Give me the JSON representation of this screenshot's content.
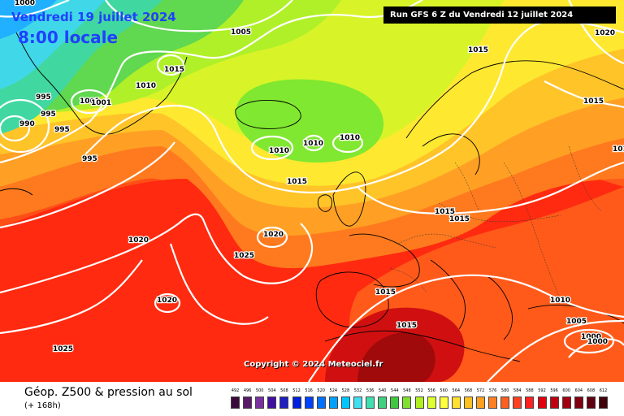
{
  "header": {
    "valid_date": "Vendredi 19 juillet 2024",
    "local_time": "8:00 locale",
    "run_info": "Run GFS 6 Z du Vendredi 12 juillet 2024"
  },
  "copyright": "Copyright © 2024 Meteociel.fr",
  "legend": {
    "title": "Géop. Z500 & pression au sol",
    "subtitle": "(+ 168h)",
    "ticks": [
      "492",
      "496",
      "500",
      "504",
      "508",
      "512",
      "516",
      "520",
      "524",
      "528",
      "532",
      "536",
      "540",
      "544",
      "548",
      "552",
      "556",
      "560",
      "564",
      "568",
      "572",
      "576",
      "580",
      "584",
      "588",
      "592",
      "596",
      "600",
      "604",
      "608",
      "612"
    ],
    "colors": [
      "#3a0a3a",
      "#5a1a6a",
      "#7a30a0",
      "#4010a0",
      "#2020c0",
      "#0020e0",
      "#0040ff",
      "#0070ff",
      "#00a0ff",
      "#00c8ff",
      "#40e0f0",
      "#40e0b0",
      "#40d080",
      "#40c840",
      "#80e030",
      "#b0f020",
      "#e0ff30",
      "#ffff40",
      "#ffe030",
      "#ffc020",
      "#ffa020",
      "#ff8020",
      "#ff6020",
      "#ff4020",
      "#ff2020",
      "#e00010",
      "#c00010",
      "#a00010",
      "#800010",
      "#600010",
      "#400008"
    ]
  },
  "isobars": {
    "labels": [
      {
        "text": "1000"
      },
      {
        "text": "1005"
      },
      {
        "text": "1015"
      },
      {
        "text": "1010"
      },
      {
        "text": "995"
      },
      {
        "text": "995"
      },
      {
        "text": "995"
      },
      {
        "text": "990"
      },
      {
        "text": "1001"
      },
      {
        "text": "1001"
      },
      {
        "text": "995"
      },
      {
        "text": "1010"
      },
      {
        "text": "1010"
      },
      {
        "text": "1010"
      },
      {
        "text": "1015"
      },
      {
        "text": "1015"
      },
      {
        "text": "1020"
      },
      {
        "text": "1015"
      },
      {
        "text": "1015"
      },
      {
        "text": "1015"
      },
      {
        "text": "1020"
      },
      {
        "text": "1025"
      },
      {
        "text": "1020"
      },
      {
        "text": "1015"
      },
      {
        "text": "1015"
      },
      {
        "text": "1025"
      },
      {
        "text": "1010"
      },
      {
        "text": "1005"
      },
      {
        "text": "1000"
      },
      {
        "text": "1000"
      },
      {
        "text": "1020"
      },
      {
        "text": "1015"
      }
    ]
  }
}
